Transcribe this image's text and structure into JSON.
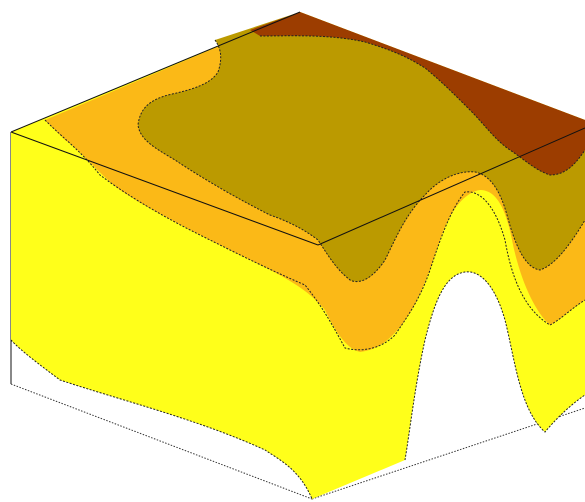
{
  "figure": {
    "type": "3d-solid-contour-slice",
    "colors": {
      "background": "#ffffff",
      "level_1": "#ffff1a",
      "level_2": "#fbb917",
      "level_3": "#bb9a00",
      "level_4": "#9c3d00"
    }
  }
}
